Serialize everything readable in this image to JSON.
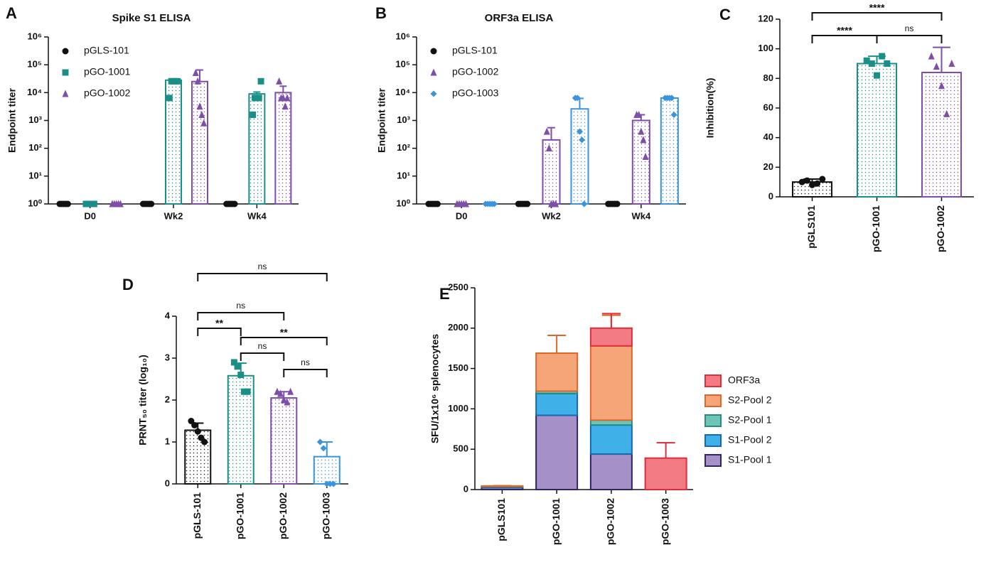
{
  "chart_data": [
    {
      "panel": "A",
      "type": "bar",
      "title": "Spike S1 ELISA",
      "y_label": "Endpoint titer",
      "log_scale": true,
      "ylim": [
        1,
        1000000
      ],
      "yticks": [
        {
          "value": 1,
          "label": "10⁰"
        },
        {
          "value": 10,
          "label": "10¹"
        },
        {
          "value": 100,
          "label": "10²"
        },
        {
          "value": 1000,
          "label": "10³"
        },
        {
          "value": 10000,
          "label": "10⁴"
        },
        {
          "value": 100000,
          "label": "10⁵"
        },
        {
          "value": 1000000,
          "label": "10⁶"
        }
      ],
      "categories": [
        "D0",
        "Wk2",
        "Wk4"
      ],
      "legend": "upper left",
      "series": [
        {
          "name": "pGLS-101",
          "color": "#111111",
          "marker": "circle",
          "values": [
            1,
            1,
            1
          ],
          "errors": [
            0,
            0,
            0
          ],
          "points": [
            [
              1,
              1,
              1,
              1,
              1
            ],
            [
              1,
              1,
              1,
              1,
              1
            ],
            [
              1,
              1,
              1,
              1,
              1
            ]
          ]
        },
        {
          "name": "pGO-1001",
          "color": "#1a8f88",
          "marker": "square",
          "values": [
            1,
            28000,
            9000
          ],
          "errors": [
            0,
            2000,
            1500
          ],
          "points": [
            [
              1,
              1,
              1,
              1,
              1
            ],
            [
              6400,
              25600,
              25600,
              25600,
              25600
            ],
            [
              1600,
              6400,
              6400,
              6400,
              25600
            ]
          ]
        },
        {
          "name": "pGO-1002",
          "color": "#7e4ea8",
          "marker": "triangle",
          "values": [
            1,
            25000,
            10000
          ],
          "errors": [
            0,
            40000,
            7000
          ],
          "points": [
            [
              1,
              1,
              1,
              1,
              1
            ],
            [
              51200,
              25600,
              3200,
              1600,
              800
            ],
            [
              25600,
              6400,
              6400,
              3200,
              6400
            ]
          ]
        }
      ]
    },
    {
      "panel": "B",
      "type": "bar",
      "title": "ORF3a ELISA",
      "y_label": "Endpoint titer",
      "log_scale": true,
      "ylim": [
        1,
        1000000
      ],
      "yticks": [
        {
          "value": 1,
          "label": "10⁰"
        },
        {
          "value": 10,
          "label": "10¹"
        },
        {
          "value": 100,
          "label": "10²"
        },
        {
          "value": 1000,
          "label": "10³"
        },
        {
          "value": 10000,
          "label": "10⁴"
        },
        {
          "value": 100000,
          "label": "10⁵"
        },
        {
          "value": 1000000,
          "label": "10⁶"
        }
      ],
      "categories": [
        "D0",
        "Wk2",
        "Wk4"
      ],
      "legend": "upper left",
      "series": [
        {
          "name": "pGLS-101",
          "color": "#111111",
          "marker": "circle",
          "values": [
            1,
            1,
            1
          ],
          "errors": [
            0,
            0,
            0
          ],
          "points": [
            [
              1,
              1,
              1,
              1,
              1
            ],
            [
              1,
              1,
              1,
              1,
              1
            ],
            [
              1,
              1,
              1,
              1,
              1
            ]
          ]
        },
        {
          "name": "pGO-1002",
          "color": "#7e4ea8",
          "marker": "triangle",
          "values": [
            1,
            200,
            1000
          ],
          "errors": [
            0,
            350,
            600
          ],
          "points": [
            [
              1,
              1,
              1,
              1,
              1
            ],
            [
              400,
              100,
              1,
              1,
              1
            ],
            [
              1600,
              1600,
              400,
              200,
              50
            ]
          ]
        },
        {
          "name": "pGO-1003",
          "color": "#3a93db",
          "marker": "diamond",
          "values": [
            1,
            2600,
            6400
          ],
          "errors": [
            0,
            3600,
            300
          ],
          "points": [
            [
              1,
              1,
              1,
              1,
              1
            ],
            [
              6400,
              6400,
              400,
              200,
              1
            ],
            [
              6400,
              6400,
              6400,
              6400,
              1600
            ]
          ]
        }
      ]
    },
    {
      "panel": "C",
      "type": "bar",
      "y_label": "Inhibition(%)",
      "ylim": [
        0,
        120
      ],
      "yticks": [
        0,
        20,
        40,
        60,
        80,
        100,
        120
      ],
      "categories": [
        "pGLS101",
        "pGO-1001",
        "pGO-1002"
      ],
      "values": [
        10,
        90,
        84
      ],
      "errors": [
        2,
        5,
        17
      ],
      "points": [
        [
          10,
          11,
          8,
          9,
          12
        ],
        [
          92,
          90,
          82,
          95,
          90
        ],
        [
          95,
          88,
          75,
          56,
          90
        ]
      ],
      "colors": [
        "#111111",
        "#1a8f88",
        "#7e4ea8"
      ],
      "markers": [
        "circle",
        "square",
        "triangle"
      ],
      "comparisons": [
        {
          "from": 0,
          "to": 2,
          "label": "****"
        },
        {
          "from": 0,
          "to": 1,
          "label": "****"
        },
        {
          "from": 1,
          "to": 2,
          "label": "ns"
        }
      ]
    },
    {
      "panel": "D",
      "type": "bar",
      "y_label": "PRNT₅₀ titer (log₁₀)",
      "ylim": [
        0,
        4
      ],
      "yticks": [
        0,
        1,
        2,
        3,
        4
      ],
      "categories": [
        "pGLS-101",
        "pGO-1001",
        "pGO-1002",
        "pGO-1003"
      ],
      "values": [
        1.28,
        2.58,
        2.05,
        0.65
      ],
      "errors": [
        0.17,
        0.3,
        0.15,
        0.35
      ],
      "points": [
        [
          1.5,
          1.4,
          1.25,
          1.1,
          1.0
        ],
        [
          2.9,
          2.8,
          2.6,
          2.2,
          2.2
        ],
        [
          2.2,
          2.15,
          2.0,
          1.95,
          2.2
        ],
        [
          1.0,
          0.85,
          0,
          0,
          0
        ]
      ],
      "colors": [
        "#111111",
        "#1a8f88",
        "#7e4ea8",
        "#3a93db"
      ],
      "markers": [
        "circle",
        "square",
        "triangle",
        "diamond"
      ],
      "comparisons": [
        {
          "from": 0,
          "to": 3,
          "label": "ns"
        },
        {
          "from": 0,
          "to": 2,
          "label": "ns"
        },
        {
          "from": 0,
          "to": 1,
          "label": "**"
        },
        {
          "from": 1,
          "to": 3,
          "label": "**"
        },
        {
          "from": 1,
          "to": 2,
          "label": "ns"
        },
        {
          "from": 2,
          "to": 3,
          "label": "ns"
        }
      ]
    },
    {
      "panel": "E",
      "type": "stacked_bar",
      "y_label": "SFU/1x10⁶ splenocytes",
      "ylim": [
        0,
        2500
      ],
      "yticks": [
        0,
        500,
        1000,
        1500,
        2000,
        2500
      ],
      "categories": [
        "pGLS101",
        "pGO-1001",
        "pGO-1002",
        "pGO-1003"
      ],
      "legend": "right",
      "series": [
        {
          "name": "S1-Pool 1",
          "color": "#a690c8",
          "edge": "#2e2466",
          "values": [
            25,
            920,
            440,
            0
          ],
          "errors": [
            5,
            590,
            180,
            0
          ]
        },
        {
          "name": "S1-Pool 2",
          "color": "#3fb0e8",
          "edge": "#1668b0",
          "values": [
            10,
            270,
            360,
            0
          ],
          "errors": [
            3,
            130,
            360,
            0
          ]
        },
        {
          "name": "S2-Pool 1",
          "color": "#6cc5b5",
          "edge": "#2a8a80",
          "values": [
            5,
            30,
            60,
            0
          ],
          "errors": [
            2,
            10,
            50,
            0
          ]
        },
        {
          "name": "S2-Pool 2",
          "color": "#f5a577",
          "edge": "#e0672a",
          "values": [
            5,
            470,
            920,
            0
          ],
          "errors": [
            3,
            220,
            380,
            0
          ]
        },
        {
          "name": "ORF3a",
          "color": "#f27a82",
          "edge": "#dc2f3c",
          "values": [
            0,
            0,
            220,
            390
          ],
          "errors": [
            0,
            0,
            180,
            190
          ]
        }
      ]
    }
  ]
}
